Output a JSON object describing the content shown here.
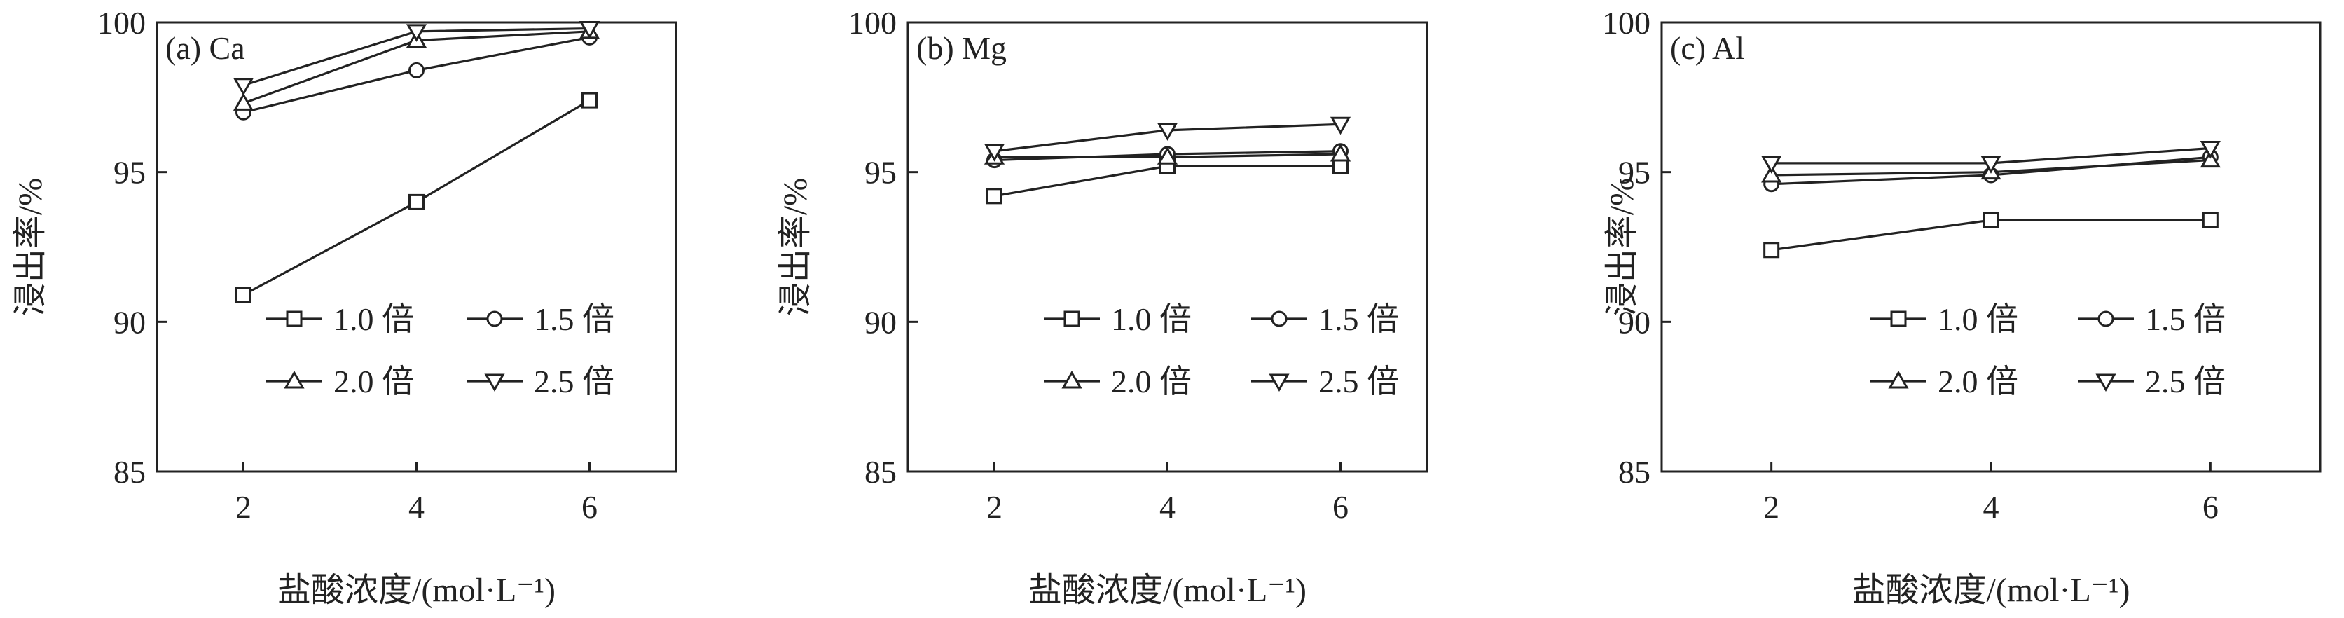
{
  "chart_data": [
    {
      "type": "line",
      "title": "(a) Ca",
      "xlabel": "盐酸浓度/(mol·L⁻¹)",
      "ylabel": "浸出率/%",
      "x": [
        2,
        4,
        6
      ],
      "xticks": [
        "2",
        "4",
        "6"
      ],
      "yticks": [
        "85",
        "90",
        "95",
        "100"
      ],
      "xlim": [
        1,
        7
      ],
      "ylim": [
        85,
        100
      ],
      "legend_position": "lower-right",
      "series": [
        {
          "name": "1.0 倍",
          "marker": "square",
          "values": [
            90.9,
            94.0,
            97.4
          ]
        },
        {
          "name": "1.5 倍",
          "marker": "circle",
          "values": [
            97.0,
            98.4,
            99.5
          ]
        },
        {
          "name": "2.0 倍",
          "marker": "triangle-up",
          "values": [
            97.3,
            99.4,
            99.7
          ]
        },
        {
          "name": "2.5 倍",
          "marker": "triangle-down",
          "values": [
            97.9,
            99.7,
            99.8
          ]
        }
      ]
    },
    {
      "type": "line",
      "title": "(b) Mg",
      "xlabel": "盐酸浓度/(mol·L⁻¹)",
      "ylabel": "浸出率/%",
      "x": [
        2,
        4,
        6
      ],
      "xticks": [
        "2",
        "4",
        "6"
      ],
      "yticks": [
        "85",
        "90",
        "95",
        "100"
      ],
      "xlim": [
        1,
        7
      ],
      "ylim": [
        85,
        100
      ],
      "legend_position": "lower-right",
      "series": [
        {
          "name": "1.0 倍",
          "marker": "square",
          "values": [
            94.2,
            95.2,
            95.2
          ]
        },
        {
          "name": "1.5 倍",
          "marker": "circle",
          "values": [
            95.4,
            95.6,
            95.7
          ]
        },
        {
          "name": "2.0 倍",
          "marker": "triangle-up",
          "values": [
            95.5,
            95.5,
            95.6
          ]
        },
        {
          "name": "2.5 倍",
          "marker": "triangle-down",
          "values": [
            95.7,
            96.4,
            96.6
          ]
        }
      ]
    },
    {
      "type": "line",
      "title": "(c) Al",
      "xlabel": "盐酸浓度/(mol·L⁻¹)",
      "ylabel": "浸出率/%",
      "x": [
        2,
        4,
        6
      ],
      "xticks": [
        "2",
        "4",
        "6"
      ],
      "yticks": [
        "85",
        "90",
        "95",
        "100"
      ],
      "xlim": [
        1,
        7
      ],
      "ylim": [
        85,
        100
      ],
      "legend_position": "lower-right",
      "series": [
        {
          "name": "1.0 倍",
          "marker": "square",
          "values": [
            92.4,
            93.4,
            93.4
          ]
        },
        {
          "name": "1.5 倍",
          "marker": "circle",
          "values": [
            94.6,
            94.9,
            95.5
          ]
        },
        {
          "name": "2.0 倍",
          "marker": "triangle-up",
          "values": [
            94.9,
            95.0,
            95.4
          ]
        },
        {
          "name": "2.5 倍",
          "marker": "triangle-down",
          "values": [
            95.3,
            95.3,
            95.8
          ]
        }
      ]
    }
  ]
}
